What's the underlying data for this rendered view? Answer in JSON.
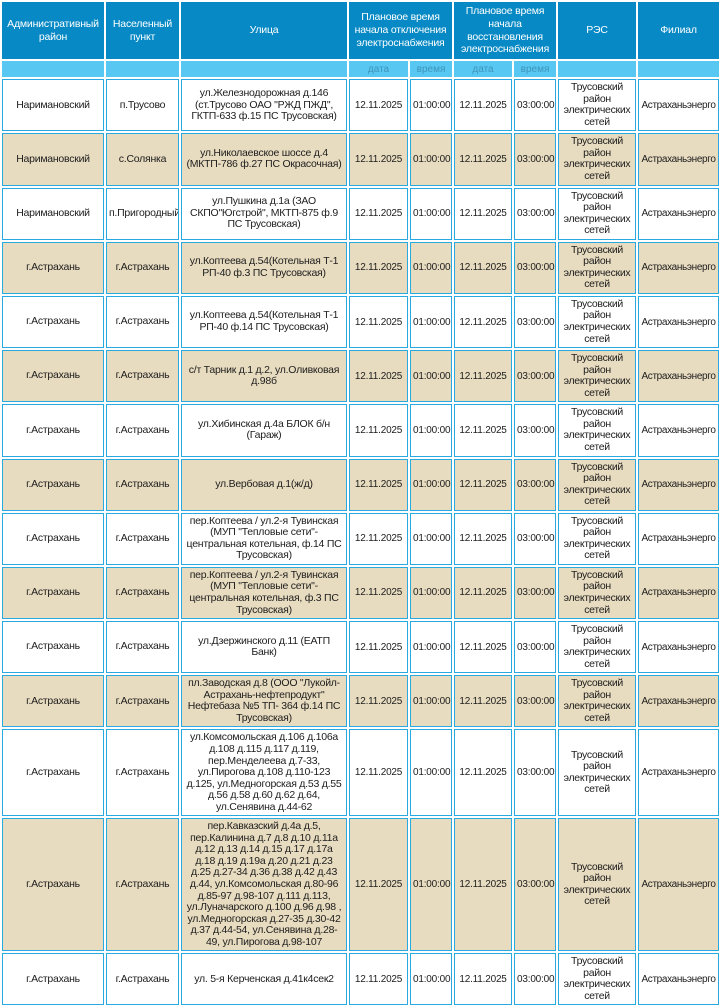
{
  "colors": {
    "header_bg": "#0689c4",
    "subheader_bg": "#58c8f3",
    "subheader_text": "#3e93b8",
    "grid": "#29a9e0",
    "row_alt": "#e8dcc0",
    "row_bg": "#ffffff",
    "text": "#1d1d1d"
  },
  "headers": {
    "district": "Административный район",
    "settlement": "Населенный пункт",
    "street": "Улица",
    "off": "Плановое время начала отключения электроснабжения",
    "on": "Плановое время начала восстановления электроснабжения",
    "res": "РЭС",
    "branch": "Филиал",
    "date": "дата",
    "time": "время"
  },
  "rows": [
    {
      "district": "Наримановский",
      "settlement": "п.Трусово",
      "street": "ул.Железнодорожная д.146 (ст.Трусово ОАО \"РЖД ПЖД\", ГКТП-633 ф.15 ПС Трусовская)",
      "off_date": "12.11.2025",
      "off_time": "01:00:00",
      "on_date": "12.11.2025",
      "on_time": "03:00:00",
      "res": "Трусовский район электрических сетей",
      "branch": "Астраханьэнерго"
    },
    {
      "district": "Наримановский",
      "settlement": "с.Солянка",
      "street": "ул.Николаевское шоссе д.4 (МКТП-786 ф.27 ПС Окрасочная)",
      "off_date": "12.11.2025",
      "off_time": "01:00:00",
      "on_date": "12.11.2025",
      "on_time": "03:00:00",
      "res": "Трусовский район электрических сетей",
      "branch": "Астраханьэнерго"
    },
    {
      "district": "Наримановский",
      "settlement": "п.Пригородный",
      "street": "ул.Пушкина д.1а (ЗАО СКПО\"Югстрой\", МКТП-875 ф.9 ПС Трусовская)",
      "off_date": "12.11.2025",
      "off_time": "01:00:00",
      "on_date": "12.11.2025",
      "on_time": "03:00:00",
      "res": "Трусовский район электрических сетей",
      "branch": "Астраханьэнерго"
    },
    {
      "district": "г.Астрахань",
      "settlement": "г.Астрахань",
      "street": "ул.Коптеева д.54(Котельная Т-1 РП-40 ф.3 ПС Трусовская)",
      "off_date": "12.11.2025",
      "off_time": "01:00:00",
      "on_date": "12.11.2025",
      "on_time": "03:00:00",
      "res": "Трусовский район электрических сетей",
      "branch": "Астраханьэнерго"
    },
    {
      "district": "г.Астрахань",
      "settlement": "г.Астрахань",
      "street": "ул.Коптеева д.54(Котельная Т-1 РП-40 ф.14 ПС Трусовская)",
      "off_date": "12.11.2025",
      "off_time": "01:00:00",
      "on_date": "12.11.2025",
      "on_time": "03:00:00",
      "res": "Трусовский район электрических сетей",
      "branch": "Астраханьэнерго"
    },
    {
      "district": "г.Астрахань",
      "settlement": "г.Астрахань",
      "street": "с/т Тарник д.1 д.2, ул.Оливковая д.98б",
      "off_date": "12.11.2025",
      "off_time": "01:00:00",
      "on_date": "12.11.2025",
      "on_time": "03:00:00",
      "res": "Трусовский район электрических сетей",
      "branch": "Астраханьэнерго"
    },
    {
      "district": "г.Астрахань",
      "settlement": "г.Астрахань",
      "street": "ул.Хибинская д.4а БЛОК б/н (Гараж)",
      "off_date": "12.11.2025",
      "off_time": "01:00:00",
      "on_date": "12.11.2025",
      "on_time": "03:00:00",
      "res": "Трусовский район электрических сетей",
      "branch": "Астраханьэнерго"
    },
    {
      "district": "г.Астрахань",
      "settlement": "г.Астрахань",
      "street": "ул.Вербовая д.1(ж/д)",
      "off_date": "12.11.2025",
      "off_time": "01:00:00",
      "on_date": "12.11.2025",
      "on_time": "03:00:00",
      "res": "Трусовский район электрических сетей",
      "branch": "Астраханьэнерго"
    },
    {
      "district": "г.Астрахань",
      "settlement": "г.Астрахань",
      "street": "пер.Коптеева / ул.2-я Тувинская (МУП \"Тепловые сети\"-центральная котельная, ф.14 ПС Трусовская)",
      "off_date": "12.11.2025",
      "off_time": "01:00:00",
      "on_date": "12.11.2025",
      "on_time": "03:00:00",
      "res": "Трусовский район электрических сетей",
      "branch": "Астраханьэнерго"
    },
    {
      "district": "г.Астрахань",
      "settlement": "г.Астрахань",
      "street": "пер.Коптеева / ул.2-я Тувинская (МУП \"Тепловые сети\"-центральная котельная, ф.3 ПС Трусовская)",
      "off_date": "12.11.2025",
      "off_time": "01:00:00",
      "on_date": "12.11.2025",
      "on_time": "03:00:00",
      "res": "Трусовский район электрических сетей",
      "branch": "Астраханьэнерго"
    },
    {
      "district": "г.Астрахань",
      "settlement": "г.Астрахань",
      "street": "ул.Дзержинского д.11 (ЕАТП Банк)",
      "off_date": "12.11.2025",
      "off_time": "01:00:00",
      "on_date": "12.11.2025",
      "on_time": "03:00:00",
      "res": "Трусовский район электрических сетей",
      "branch": "Астраханьэнерго"
    },
    {
      "district": "г.Астрахань",
      "settlement": "г.Астрахань",
      "street": "пл.Заводская д.8 (ООО \"Лукойл-Астрахань-нефтепродукт\" Нефтебаза №5 ТП- 364 ф.14 ПС Трусовская)",
      "off_date": "12.11.2025",
      "off_time": "01:00:00",
      "on_date": "12.11.2025",
      "on_time": "03:00:00",
      "res": "Трусовский район электрических сетей",
      "branch": "Астраханьэнерго"
    },
    {
      "district": "г.Астрахань",
      "settlement": "г.Астрахань",
      "street": "ул.Комсомольская д.106 д.106а д.108 д.115 д.117 д.119, пер.Менделеева д.7-33, ул.Пирогова д.108 д.110-123 д.125, ул.Медногорская д.53 д.55 д.56 д.58 д.60 д.62 д.64, ул.Сенявина д.44-62",
      "off_date": "12.11.2025",
      "off_time": "01:00:00",
      "on_date": "12.11.2025",
      "on_time": "03:00:00",
      "res": "Трусовский район электрических сетей",
      "branch": "Астраханьэнерго"
    },
    {
      "district": "г.Астрахань",
      "settlement": "г.Астрахань",
      "street": "пер.Кавказский д.4а д.5, пер.Калинина д.7 д.8 д.10 д.11а д.12 д.13 д.14 д.15 д.17 д.17а д.18 д.19 д.19а д.20 д.21 д.23 д.25 д.27-34 д.36 д.38 д.42 д.43 д.44, ул.Комсомольская д.80-96 д.85-97 д.98-107 д.111 д.113, ул.Луначарского д.100 д.96 д.98 , ул.Медногорская д.27-35 д.30-42 д.37 д.44-54, ул.Сенявина д.28-49, ул.Пирогова д.98-107",
      "off_date": "12.11.2025",
      "off_time": "01:00:00",
      "on_date": "12.11.2025",
      "on_time": "03:00:00",
      "res": "Трусовский район электрических сетей",
      "branch": "Астраханьэнерго"
    },
    {
      "district": "г.Астрахань",
      "settlement": "г.Астрахань",
      "street": "ул. 5-я Керченская д.41к4сек2",
      "off_date": "12.11.2025",
      "off_time": "01:00:00",
      "on_date": "12.11.2025",
      "on_time": "03:00:00",
      "res": "Трусовский район электрических сетей",
      "branch": "Астраханьэнерго"
    }
  ]
}
